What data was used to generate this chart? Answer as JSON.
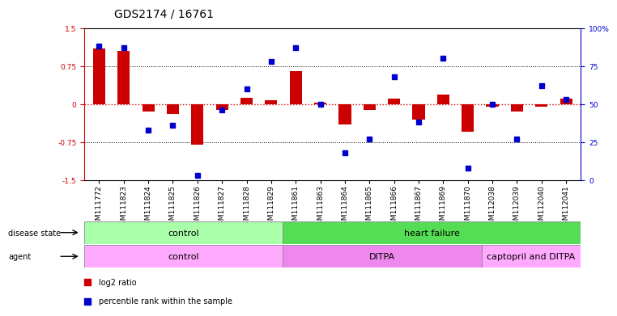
{
  "title": "GDS2174 / 16761",
  "samples": [
    "GSM111772",
    "GSM111823",
    "GSM111824",
    "GSM111825",
    "GSM111826",
    "GSM111827",
    "GSM111828",
    "GSM111829",
    "GSM111861",
    "GSM111863",
    "GSM111864",
    "GSM111865",
    "GSM111866",
    "GSM111867",
    "GSM111869",
    "GSM111870",
    "GSM112038",
    "GSM112039",
    "GSM112040",
    "GSM112041"
  ],
  "log2_ratio": [
    1.1,
    1.05,
    -0.15,
    -0.2,
    -0.8,
    -0.12,
    0.12,
    0.08,
    0.65,
    0.03,
    -0.4,
    -0.12,
    0.1,
    -0.3,
    0.18,
    -0.55,
    -0.05,
    -0.15,
    -0.05,
    0.1
  ],
  "percentile": [
    88,
    87,
    33,
    36,
    3,
    46,
    60,
    78,
    87,
    50,
    18,
    27,
    68,
    38,
    80,
    8,
    50,
    27,
    62,
    53
  ],
  "ylim_left": [
    -1.5,
    1.5
  ],
  "ylim_right": [
    0,
    100
  ],
  "disease_state_groups": [
    {
      "label": "control",
      "start": 0,
      "end": 7,
      "color": "#aaffaa"
    },
    {
      "label": "heart failure",
      "start": 8,
      "end": 19,
      "color": "#55dd55"
    }
  ],
  "agent_groups": [
    {
      "label": "control",
      "start": 0,
      "end": 7,
      "color": "#ffaaff"
    },
    {
      "label": "DITPA",
      "start": 8,
      "end": 15,
      "color": "#ee88ee"
    },
    {
      "label": "captopril and DITPA",
      "start": 16,
      "end": 19,
      "color": "#ffaaff"
    }
  ],
  "bar_color": "#cc0000",
  "dot_color": "#0000cc",
  "background_color": "#ffffff",
  "title_fontsize": 10,
  "tick_fontsize": 6.5,
  "label_fontsize": 8
}
